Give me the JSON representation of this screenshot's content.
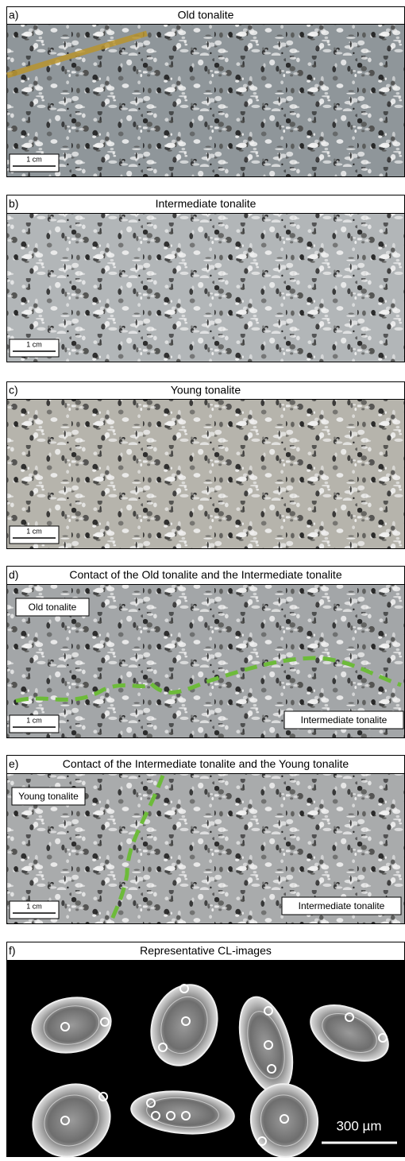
{
  "panels": [
    {
      "label": "a)",
      "title": "Old tonalite",
      "scale_bar": "1 cm"
    },
    {
      "label": "b)",
      "title": "Intermediate tonalite",
      "scale_bar": "1 cm"
    },
    {
      "label": "c)",
      "title": "Young tonalite",
      "scale_bar": "1 cm"
    },
    {
      "label": "d)",
      "title": "Contact of the Old tonalite and the Intermediate tonalite",
      "scale_bar": "1 cm",
      "annotations": [
        "Old tonalite",
        "Intermediate tonalite"
      ]
    },
    {
      "label": "e)",
      "title": "Contact of the Intermediate tonalite and the Young tonalite",
      "scale_bar": "1 cm",
      "annotations": [
        "Young tonalite",
        "Intermediate tonalite"
      ]
    },
    {
      "label": "f)",
      "title": "Representative CL-images",
      "scale_bar": "300 µm"
    }
  ]
}
